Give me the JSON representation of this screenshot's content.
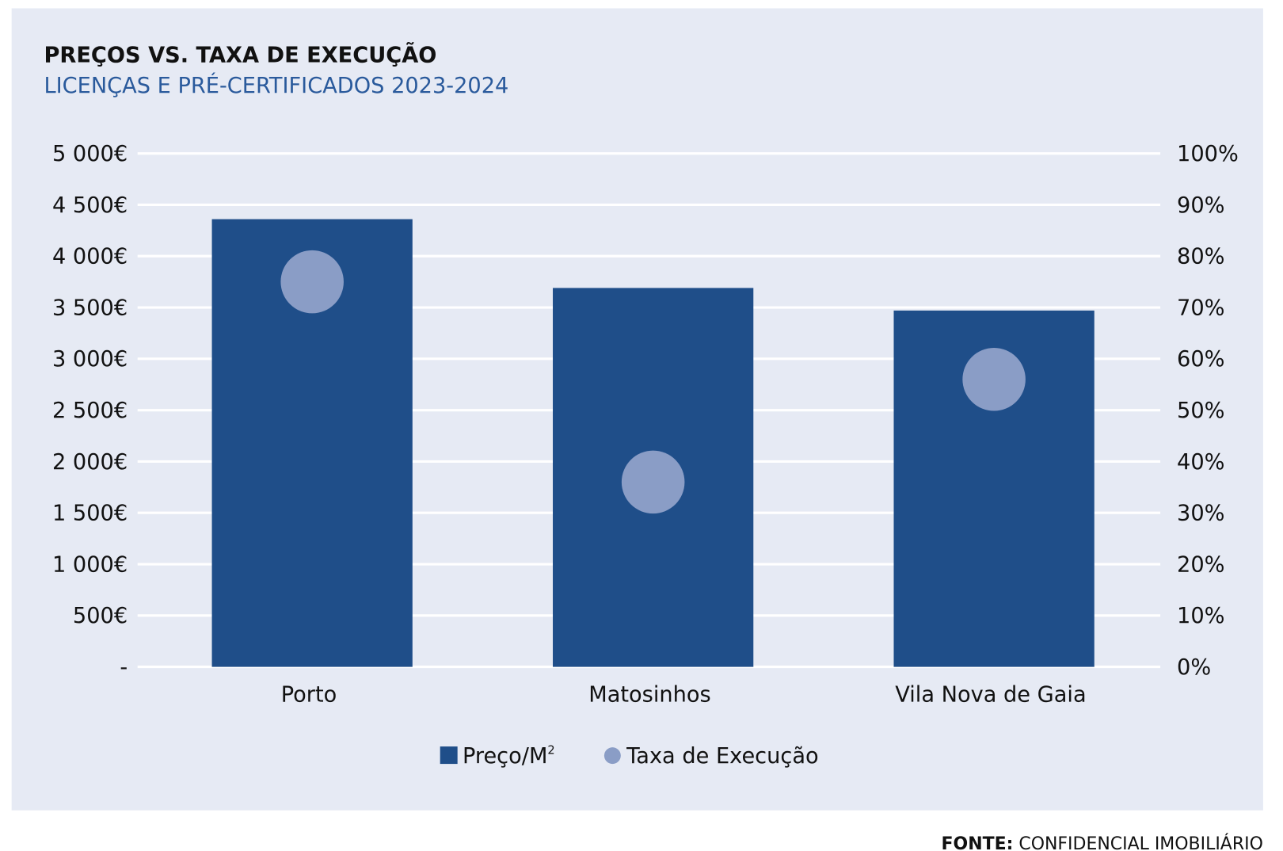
{
  "chart_data": {
    "type": "bar",
    "title": "PREÇOS VS. TAXA DE EXECUÇÃO",
    "subtitle": "LICENÇAS E PRÉ-CERTIFICADOS 2023-2024",
    "categories": [
      "Porto",
      "Matosinhos",
      "Vila Nova de Gaia"
    ],
    "series": [
      {
        "name": "Preço/M²",
        "type": "bar",
        "axis": "left",
        "values": [
          4360,
          3690,
          3470
        ],
        "color": "#1f4e89"
      },
      {
        "name": "Taxa de Execução",
        "type": "scatter",
        "axis": "right",
        "values": [
          75,
          36,
          56
        ],
        "color": "#8a9dc6"
      }
    ],
    "y_left": {
      "range": [
        0,
        5000
      ],
      "ticks": [
        0,
        500,
        1000,
        1500,
        2000,
        2500,
        3000,
        3500,
        4000,
        4500,
        5000
      ],
      "tick_labels": [
        "-",
        "500€",
        "1 000€",
        "1 500€",
        "2 000€",
        "2 500€",
        "3 000€",
        "3 500€",
        "4 000€",
        "4 500€",
        "5 000€"
      ]
    },
    "y_right": {
      "range": [
        0,
        100
      ],
      "ticks": [
        0,
        10,
        20,
        30,
        40,
        50,
        60,
        70,
        80,
        90,
        100
      ],
      "tick_labels": [
        "0%",
        "10%",
        "20%",
        "30%",
        "40%",
        "50%",
        "60%",
        "70%",
        "80%",
        "90%",
        "100%"
      ]
    },
    "grid": true,
    "legend_placement": "bottom",
    "legend": [
      "Preço/M",
      "2",
      "Taxa de Execução"
    ],
    "source_label": "FONTE:",
    "source": "CONFIDENCIAL IMOBILIÁRIO",
    "colors": {
      "panel": "#e6eaf4",
      "title": "#111111",
      "subtitle": "#2a5a9c",
      "grid": "#ffffff"
    }
  }
}
